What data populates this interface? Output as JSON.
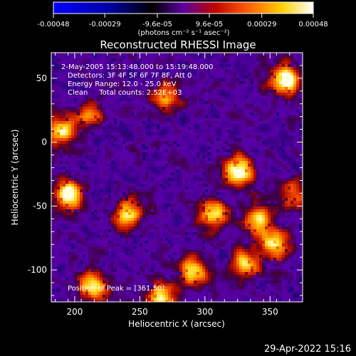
{
  "colorbar": {
    "ticks": [
      "-0.00048",
      "-0.00029",
      "-9.6e-05",
      "9.6e-05",
      "0.00029",
      "0.00048"
    ],
    "tick_values": [
      -0.00048,
      -0.00029,
      -9.6e-05,
      9.6e-05,
      0.00029,
      0.00048
    ],
    "range": [
      -0.00048,
      0.00048
    ],
    "unit_label": "(photons cm⁻² s⁻¹ asec⁻²)",
    "colors": [
      "#0000ff",
      "#000000",
      "#5a00a0",
      "#d01000",
      "#ff7a00",
      "#ffe000",
      "#ffffff"
    ]
  },
  "chart_data": {
    "type": "heatmap",
    "title": "Reconstructed RHESSI Image",
    "xlabel": "Heliocentric X (arcsec)",
    "ylabel": "Heliocentric Y (arcsec)",
    "xlim": [
      182,
      375
    ],
    "ylim": [
      -125,
      70
    ],
    "xticks": [
      200,
      250,
      300,
      350
    ],
    "yticks": [
      50,
      0,
      -50,
      -100
    ],
    "annotations": {
      "time_range": "2-May-2005 15:13:48.000 to 15:19:48.000",
      "detectors": "Detectors: 3F 4F 5F 6F 7F 8F, Att 0",
      "energy": "Energy Range: 12.0 - 25.0 keV",
      "method": "Clean     Total counts: 2.52E+03",
      "peak": "Position of Peak = [361,50]"
    },
    "bright_sources": [
      {
        "x": 361,
        "y": 50,
        "level": "peak"
      },
      {
        "x": 195,
        "y": -40,
        "level": "high"
      },
      {
        "x": 325,
        "y": -22,
        "level": "high"
      },
      {
        "x": 188,
        "y": 10,
        "level": "medium"
      },
      {
        "x": 330,
        "y": -95,
        "level": "medium"
      },
      {
        "x": 352,
        "y": -78,
        "level": "medium"
      },
      {
        "x": 265,
        "y": -120,
        "level": "medium"
      },
      {
        "x": 340,
        "y": -60,
        "level": "medium"
      },
      {
        "x": 213,
        "y": -112,
        "level": "medium"
      },
      {
        "x": 240,
        "y": -55,
        "level": "medium"
      },
      {
        "x": 290,
        "y": -100,
        "level": "medium"
      },
      {
        "x": 270,
        "y": 35,
        "level": "low"
      },
      {
        "x": 305,
        "y": -55,
        "level": "medium"
      },
      {
        "x": 210,
        "y": 22,
        "level": "low"
      },
      {
        "x": 368,
        "y": -40,
        "level": "low"
      }
    ]
  },
  "footer": {
    "timestamp": "29-Apr-2022 15:16"
  }
}
